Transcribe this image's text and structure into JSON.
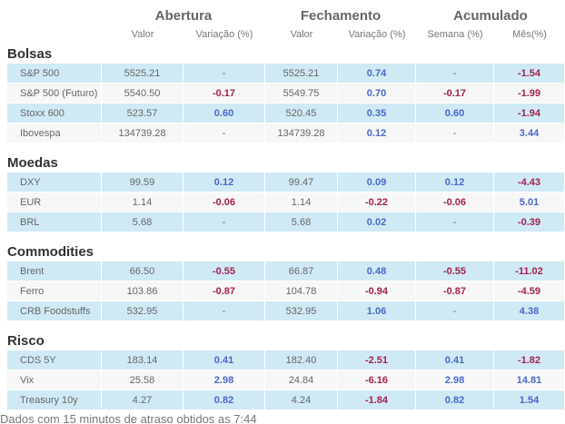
{
  "header": {
    "groups": [
      "Abertura",
      "Fechamento",
      "Acumulado"
    ],
    "columns": [
      "Valor",
      "Variação (%)",
      "Valor",
      "Variação (%)",
      "Semana (%)",
      "Mês(%)"
    ]
  },
  "sections": [
    {
      "title": "Bolsas",
      "rows": [
        [
          "S&P 500",
          "5525.21",
          "-",
          "5525.21",
          "0.74",
          "-",
          "-1.54"
        ],
        [
          "S&P 500 (Futuro)",
          "5540.50",
          "-0.17",
          "5549.75",
          "0.70",
          "-0.17",
          "-1.99"
        ],
        [
          "Stoxx 600",
          "523.57",
          "0.60",
          "520.45",
          "0.35",
          "0.60",
          "-1.94"
        ],
        [
          "Ibovespa",
          "134739.28",
          "-",
          "134739.28",
          "0.12",
          "-",
          "3.44"
        ]
      ]
    },
    {
      "title": "Moedas",
      "rows": [
        [
          "DXY",
          "99.59",
          "0.12",
          "99.47",
          "0.09",
          "0.12",
          "-4.43"
        ],
        [
          "EUR",
          "1.14",
          "-0.06",
          "1.14",
          "-0.22",
          "-0.06",
          "5.01"
        ],
        [
          "BRL",
          "5.68",
          "-",
          "5.68",
          "0.02",
          "-",
          "-0.39"
        ]
      ]
    },
    {
      "title": "Commodities",
      "rows": [
        [
          "Brent",
          "66.50",
          "-0.55",
          "66.87",
          "0.48",
          "-0.55",
          "-11.02"
        ],
        [
          "Ferro",
          "103.86",
          "-0.87",
          "104.78",
          "-0.94",
          "-0.87",
          "-4.59"
        ],
        [
          "CRB Foodstuffs",
          "532.95",
          "-",
          "532.95",
          "1.06",
          "-",
          "4.38"
        ]
      ]
    },
    {
      "title": "Risco",
      "rows": [
        [
          "CDS 5Y",
          "183.14",
          "0.41",
          "182.40",
          "-2.51",
          "0.41",
          "-1.82"
        ],
        [
          "Vix",
          "25.58",
          "2.98",
          "24.84",
          "-6.16",
          "2.98",
          "14.81"
        ],
        [
          "Treasury 10y",
          "4.27",
          "0.82",
          "4.24",
          "-1.84",
          "0.82",
          "1.54"
        ]
      ]
    }
  ],
  "footer": "Dados com 15 minutos de atraso obtidos as 7:44"
}
